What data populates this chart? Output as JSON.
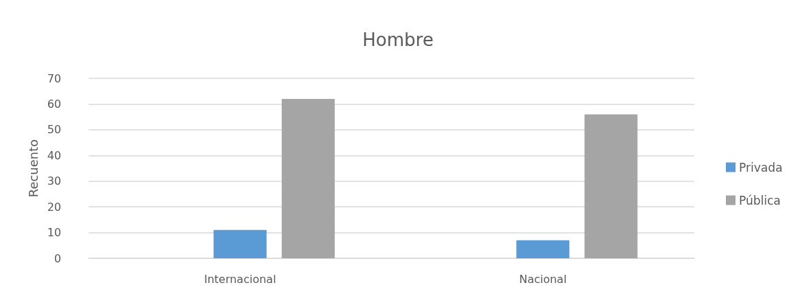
{
  "chart_data": {
    "type": "bar",
    "title": "Hombre",
    "ylabel": "Recuento",
    "categories": [
      "Internacional",
      "Nacional"
    ],
    "series": [
      {
        "name": "Privada",
        "color": "#5b9bd5",
        "values": [
          11,
          7
        ]
      },
      {
        "name": "Pública",
        "color": "#a5a5a5",
        "values": [
          62,
          56
        ]
      }
    ],
    "ylim": [
      0,
      70
    ],
    "yticks": [
      0,
      10,
      20,
      30,
      40,
      50,
      60,
      70
    ],
    "grid": "y",
    "legend": "right"
  }
}
